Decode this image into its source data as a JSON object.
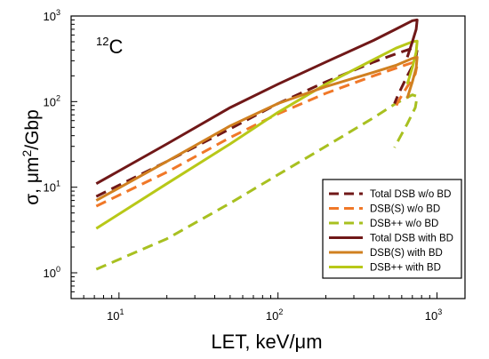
{
  "chart_data": {
    "type": "line",
    "annotation": "12C",
    "annotation_parts": {
      "mass": "12",
      "symbol": "C"
    },
    "xlabel": "LET, keV/μm",
    "ylabel_parts": {
      "pre": "σ, μm",
      "sup": "2",
      "post": "/Gbp"
    },
    "xscale": "log",
    "yscale": "log",
    "xlim": [
      5,
      1500
    ],
    "ylim": [
      0.5,
      1000
    ],
    "x_ticks": [
      {
        "value": 10,
        "base": "10",
        "exp": "1"
      },
      {
        "value": 100,
        "base": "10",
        "exp": "2"
      },
      {
        "value": 1000,
        "base": "10",
        "exp": "3"
      }
    ],
    "y_ticks": [
      {
        "value": 1,
        "label": "10",
        "exp": "0"
      },
      {
        "value": 10,
        "label": "10",
        "exp": "1"
      },
      {
        "value": 100,
        "label": "10",
        "exp": "2"
      },
      {
        "value": 1000,
        "label": "10",
        "exp": "3"
      }
    ],
    "grid": false,
    "legend_position": "lower-right",
    "series": [
      {
        "name": "Total DSB w/o BD",
        "color": "#701818",
        "dash": "dashed",
        "points": [
          [
            7.2,
            7.8
          ],
          [
            20,
            20
          ],
          [
            50,
            48
          ],
          [
            100,
            95
          ],
          [
            200,
            170
          ],
          [
            400,
            290
          ],
          [
            550,
            360
          ],
          [
            700,
            420
          ],
          [
            750,
            400
          ],
          [
            730,
            300
          ],
          [
            650,
            200
          ],
          [
            570,
            120
          ],
          [
            540,
            95
          ]
        ]
      },
      {
        "name": "DSB(S) w/o BD",
        "color": "#f07828",
        "dash": "dashed",
        "points": [
          [
            7.2,
            6
          ],
          [
            20,
            15
          ],
          [
            50,
            38
          ],
          [
            100,
            72
          ],
          [
            200,
            125
          ],
          [
            400,
            200
          ],
          [
            550,
            245
          ],
          [
            700,
            285
          ],
          [
            750,
            270
          ],
          [
            730,
            210
          ],
          [
            650,
            150
          ],
          [
            570,
            100
          ],
          [
            540,
            80
          ]
        ]
      },
      {
        "name": "DSB++ w/o BD",
        "color": "#a8c020",
        "dash": "dashed",
        "points": [
          [
            7.2,
            1.1
          ],
          [
            20,
            2.5
          ],
          [
            50,
            6.5
          ],
          [
            100,
            14
          ],
          [
            200,
            30
          ],
          [
            400,
            65
          ],
          [
            550,
            95
          ],
          [
            700,
            120
          ],
          [
            750,
            115
          ],
          [
            730,
            85
          ],
          [
            650,
            55
          ],
          [
            570,
            35
          ],
          [
            540,
            29
          ]
        ]
      },
      {
        "name": "Total DSB with BD",
        "color": "#701818",
        "dash": "solid",
        "points": [
          [
            7.2,
            11
          ],
          [
            20,
            32
          ],
          [
            50,
            85
          ],
          [
            100,
            160
          ],
          [
            200,
            290
          ],
          [
            400,
            520
          ],
          [
            550,
            700
          ],
          [
            700,
            880
          ],
          [
            750,
            900
          ],
          [
            740,
            700
          ],
          [
            700,
            500
          ],
          [
            650,
            330
          ]
        ]
      },
      {
        "name": "DSB(S) with BD",
        "color": "#d08020",
        "dash": "solid",
        "points": [
          [
            7.2,
            7
          ],
          [
            20,
            20
          ],
          [
            50,
            52
          ],
          [
            100,
            95
          ],
          [
            200,
            150
          ],
          [
            400,
            220
          ],
          [
            550,
            265
          ],
          [
            700,
            320
          ],
          [
            750,
            330
          ],
          [
            740,
            250
          ],
          [
            700,
            170
          ],
          [
            650,
            110
          ]
        ]
      },
      {
        "name": "DSB++ with BD",
        "color": "#b8c818",
        "dash": "solid",
        "points": [
          [
            7.2,
            3.3
          ],
          [
            20,
            11
          ],
          [
            50,
            32
          ],
          [
            100,
            75
          ],
          [
            200,
            160
          ],
          [
            400,
            310
          ],
          [
            550,
            420
          ],
          [
            700,
            500
          ],
          [
            750,
            510
          ],
          [
            740,
            380
          ],
          [
            700,
            250
          ],
          [
            650,
            160
          ]
        ]
      }
    ]
  }
}
